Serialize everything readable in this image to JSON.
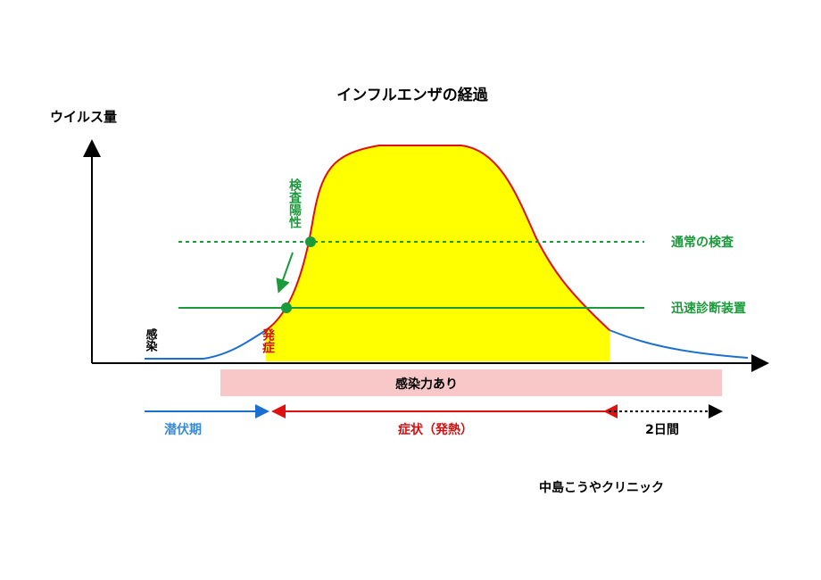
{
  "title": "インフルエンザの経過",
  "y_axis_label": "ウイルス量",
  "infection_label": "感染",
  "onset_label": "発症",
  "test_positive_label": "検査陽性",
  "normal_test_label": "通常の検査",
  "rapid_test_label": "迅速診断装置",
  "contagious_label": "感染力あり",
  "periods": {
    "incubation": "潜伏期",
    "symptoms": "症状（発熱）",
    "after": "2日間"
  },
  "credit": "中島こうやクリニック",
  "colors": {
    "fill": "#ffff00",
    "curve_red": "#e01010",
    "curve_blue": "#1a6fd0",
    "green": "#1a9a3a",
    "pink_bar": "#f8c8c8",
    "label_red": "#d01010",
    "label_blue": "#3a8ad8"
  }
}
